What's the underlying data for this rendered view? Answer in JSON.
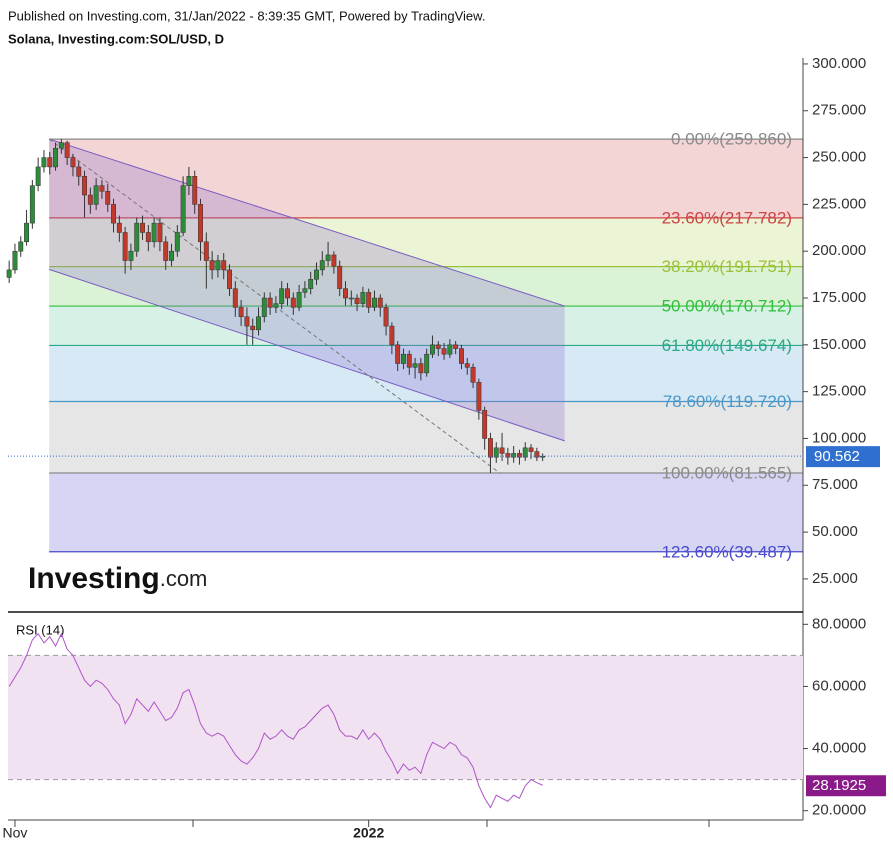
{
  "header": {
    "published": "Published on Investing.com, 31/Jan/2022 - 8:39:35 GMT, Powered by TradingView.",
    "symbol": "Solana, Investing.com:SOL/USD, D"
  },
  "logo": {
    "brand": "Investing",
    "suffix": ".com"
  },
  "chart_data": [
    {
      "type": "candlestick",
      "open": [
        186,
        190,
        200,
        205,
        215,
        235,
        245,
        250,
        245,
        255,
        258,
        250,
        245,
        240,
        230,
        225,
        235,
        232,
        225,
        215,
        210,
        195,
        200,
        215,
        210,
        205,
        215,
        205,
        195,
        200,
        210,
        235,
        240,
        225,
        205,
        195,
        190,
        195,
        190,
        180,
        170,
        165,
        160,
        158,
        165,
        175,
        170,
        172,
        180,
        175,
        170,
        178,
        180,
        185,
        190,
        195,
        198,
        192,
        180,
        175,
        175,
        172,
        178,
        170,
        175,
        170,
        160,
        150,
        140,
        145,
        138,
        140,
        135,
        145,
        150,
        148,
        145,
        150,
        148,
        140,
        138,
        130,
        115,
        100,
        90,
        95,
        92,
        90,
        92,
        90,
        95,
        93,
        90
      ],
      "high": [
        195,
        204,
        208,
        222,
        238,
        250,
        254,
        253,
        258,
        259.86,
        259,
        252,
        248,
        243,
        234,
        239,
        238,
        236,
        228,
        219,
        213,
        204,
        218,
        219,
        214,
        218,
        218,
        208,
        204,
        214,
        240,
        245,
        243,
        228,
        210,
        200,
        198,
        199,
        193,
        184,
        174,
        170,
        164,
        170,
        178,
        178,
        176,
        184,
        183,
        178,
        182,
        184,
        189,
        194,
        200,
        205,
        200,
        195,
        184,
        179,
        177,
        181,
        180,
        179,
        177,
        172,
        162,
        152,
        148,
        147,
        143,
        143,
        148,
        155,
        152,
        151,
        153,
        152,
        150,
        143,
        140,
        132,
        117,
        103,
        98,
        103,
        95,
        96,
        94,
        98,
        97,
        95,
        92
      ],
      "low": [
        183,
        188,
        197,
        203,
        212,
        232,
        242,
        241,
        243,
        252,
        246,
        240,
        235,
        218,
        220,
        222,
        228,
        221,
        210,
        205,
        188,
        190,
        197,
        206,
        200,
        202,
        200,
        190,
        192,
        197,
        208,
        230,
        220,
        195,
        180,
        185,
        186,
        185,
        176,
        165,
        160,
        150,
        150,
        155,
        162,
        166,
        167,
        169,
        171,
        166,
        168,
        175,
        177,
        182,
        187,
        192,
        188,
        176,
        171,
        171,
        168,
        170,
        167,
        168,
        165,
        155,
        145,
        136,
        137,
        134,
        132,
        131,
        133,
        143,
        144,
        142,
        143,
        145,
        137,
        134,
        127,
        110,
        94,
        81.565,
        87,
        88,
        86,
        87,
        86,
        88,
        89,
        88,
        88
      ],
      "close": [
        190,
        200,
        205,
        215,
        235,
        245,
        250,
        245,
        255,
        258,
        250,
        245,
        240,
        230,
        225,
        235,
        232,
        225,
        215,
        210,
        195,
        200,
        215,
        210,
        205,
        215,
        205,
        195,
        200,
        210,
        235,
        240,
        225,
        205,
        195,
        190,
        195,
        190,
        180,
        170,
        165,
        160,
        158,
        165,
        175,
        170,
        172,
        180,
        175,
        170,
        178,
        180,
        185,
        190,
        195,
        198,
        192,
        180,
        175,
        175,
        172,
        178,
        170,
        175,
        170,
        160,
        150,
        140,
        145,
        138,
        140,
        135,
        145,
        150,
        148,
        145,
        150,
        148,
        140,
        138,
        130,
        115,
        100,
        90,
        95,
        92,
        90,
        92,
        90,
        95,
        93,
        90,
        90.562
      ],
      "up_color": "#2e8b3a",
      "down_color": "#c0392b",
      "xlim": [
        -0.2,
        136.9
      ],
      "xticks": [
        {
          "value": 1,
          "label": "Nov"
        },
        {
          "value": 62,
          "label": "2022"
        }
      ],
      "ylim": [
        8.4,
        302.1
      ],
      "yticks": [
        {
          "value": 25,
          "label": "25.000"
        },
        {
          "value": 50,
          "label": "50.000"
        },
        {
          "value": 75,
          "label": "75.000"
        },
        {
          "value": 100,
          "label": "100.000"
        },
        {
          "value": 125,
          "label": "125.000"
        },
        {
          "value": 150,
          "label": "150.000"
        },
        {
          "value": 175,
          "label": "175.000"
        },
        {
          "value": 200,
          "label": "200.000"
        },
        {
          "value": 225,
          "label": "225.000"
        },
        {
          "value": 250,
          "label": "250.000"
        },
        {
          "value": 275,
          "label": "275.000"
        },
        {
          "value": 300,
          "label": "300.000"
        }
      ],
      "fib_start_x": 6.9,
      "fib_levels": [
        {
          "label": "0.00%(259.860)",
          "value": 259.86,
          "color": "#8a8a8a"
        },
        {
          "label": "23.60%(217.782)",
          "value": 217.782,
          "color": "#cc4444"
        },
        {
          "label": "38.20%(191.751)",
          "value": 191.751,
          "color": "#99c23a"
        },
        {
          "label": "50.00%(170.712)",
          "value": 170.712,
          "color": "#2fbf3a"
        },
        {
          "label": "61.80%(149.674)",
          "value": 149.674,
          "color": "#2aa887"
        },
        {
          "label": "78.60%(119.720)",
          "value": 119.72,
          "color": "#4a98c8"
        },
        {
          "label": "100.00%(81.565)",
          "value": 81.565,
          "color": "#8a8a8a"
        },
        {
          "label": "123.60%(39.487)",
          "value": 39.487,
          "color": "#4a4acc"
        }
      ],
      "fib_band_colors": [
        "#f3d5d5",
        "#ecf4d6",
        "#dcf2d6",
        "#d8f1e6",
        "#d6e9f4",
        "#e6e6e6",
        "#d6d6f4"
      ],
      "channel": {
        "x": [
          6.9,
          95.8
        ],
        "upper": [
          259.86,
          170.712
        ],
        "lower": [
          190.3,
          98.7
        ],
        "color": "#7a5cc0"
      },
      "trend_line": {
        "x": [
          6.9,
          84.6
        ],
        "y": [
          259.86,
          81.565
        ]
      },
      "price_color": "#2f6fd0"
    },
    {
      "type": "line",
      "title": "RSI (14)",
      "color": "#b054c8",
      "values": [
        60,
        63,
        66,
        70,
        75,
        77,
        74,
        76,
        73,
        77,
        72,
        70,
        66,
        62,
        60,
        62,
        61,
        59,
        56,
        54,
        48,
        51,
        56,
        54,
        52,
        55,
        52,
        49,
        50,
        53,
        58,
        59,
        54,
        48,
        45,
        44,
        45,
        44,
        41,
        38,
        36,
        35,
        37,
        40,
        45,
        43,
        44,
        46,
        44,
        43,
        46,
        47,
        49,
        51,
        53,
        54,
        51,
        46,
        44,
        44,
        43,
        46,
        43,
        45,
        43,
        39,
        36,
        32,
        35,
        33,
        34,
        32,
        38,
        42,
        41,
        40,
        42,
        41,
        38,
        37,
        34,
        28,
        24,
        21,
        25,
        24,
        23,
        25,
        24,
        28,
        30,
        29,
        28.1925
      ],
      "ylim": [
        17,
        83
      ],
      "yticks": [
        {
          "value": 20,
          "label": "20.0000"
        },
        {
          "value": 40,
          "label": "40.0000"
        },
        {
          "value": 60,
          "label": "60.0000"
        },
        {
          "value": 80,
          "label": "80.0000"
        }
      ],
      "levels": [
        70,
        30
      ],
      "band_color": "#f1e2f1",
      "label_color": "#8a1a8a"
    }
  ]
}
